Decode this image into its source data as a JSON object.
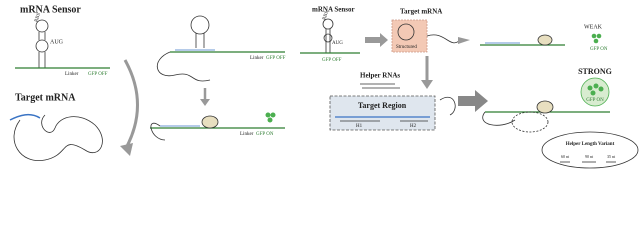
{
  "left_panel": {
    "sensor_title": "mRNA Sensor",
    "rbs": "RBS",
    "aug": "AUG",
    "linker": "Linker",
    "gfp_state": "GFP OFF",
    "target_title": "Target mRNA"
  },
  "middle_panel": {
    "top_linker": "Linker",
    "top_gfp_state": "GFP OFF",
    "bottom_linker": "Linker",
    "bottom_gfp_state": "GFP ON"
  },
  "right_panel": {
    "sensor_title": "mRNA Sensor",
    "rbs": "RBS",
    "aug": "AUG",
    "sensor_gfp_state": "GFP OFF",
    "target_title": "Target mRNA",
    "structured": "Structured",
    "weak": "WEAK",
    "weak_gfp_state": "GFP ON",
    "helper_title": "Helper RNAs",
    "target_region": "Target Region",
    "h1": "H1",
    "h2": "H2",
    "strong": "STRONG",
    "strong_gfp_state": "GFP ON",
    "variant_title": "Helper Length Variant",
    "variant_lengths": [
      "60 nt",
      "90 nt",
      "35 nt"
    ]
  }
}
